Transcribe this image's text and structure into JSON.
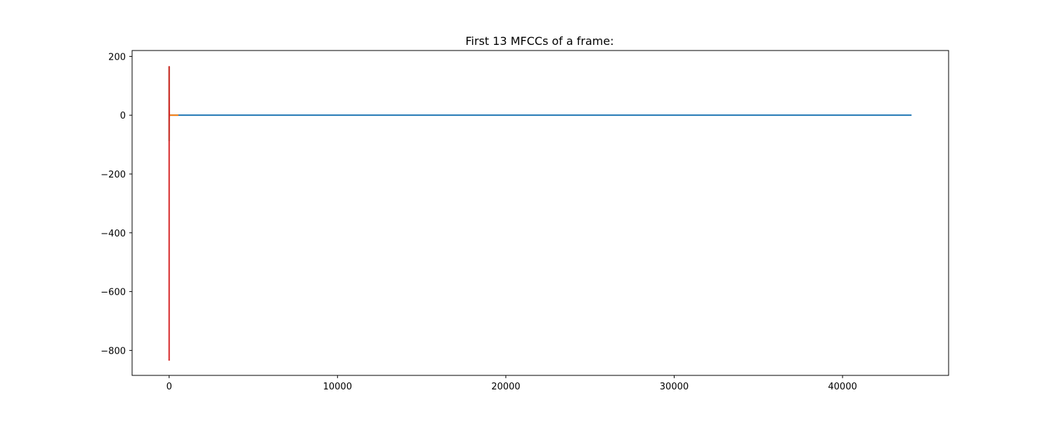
{
  "chart_data": {
    "type": "line",
    "title": "First 13 MFCCs of a frame:",
    "xlabel": "",
    "ylabel": "",
    "xlim": [
      -2200,
      46300
    ],
    "ylim": [
      -885,
      220
    ],
    "x_ticks": [
      0,
      10000,
      20000,
      30000,
      40000
    ],
    "x_tick_labels": [
      "0",
      "10000",
      "20000",
      "30000",
      "40000"
    ],
    "y_ticks": [
      200,
      0,
      -200,
      -400,
      -600,
      -800
    ],
    "y_tick_labels": [
      "200",
      "0",
      "−200",
      "−400",
      "−600",
      "−800"
    ],
    "grid": false,
    "legend": "none",
    "series": [
      {
        "color": "#1f77b4",
        "points": [
          [
            0,
            0
          ],
          [
            44100,
            0
          ]
        ]
      },
      {
        "color": "#ff7f0e",
        "points": [
          [
            0,
            0
          ],
          [
            550,
            0
          ]
        ]
      },
      {
        "color": "#2ca02c",
        "points": [
          [
            0,
            -88
          ],
          [
            0,
            165
          ]
        ]
      },
      {
        "color": "#d62728",
        "points": [
          [
            0,
            -835
          ],
          [
            1,
            165
          ],
          [
            2,
            -60
          ],
          [
            3,
            120
          ],
          [
            4,
            -20
          ],
          [
            5,
            60
          ],
          [
            6,
            -10
          ],
          [
            7,
            30
          ],
          [
            8,
            -5
          ],
          [
            9,
            15
          ],
          [
            10,
            0
          ],
          [
            11,
            5
          ],
          [
            12,
            0
          ]
        ]
      }
    ]
  }
}
